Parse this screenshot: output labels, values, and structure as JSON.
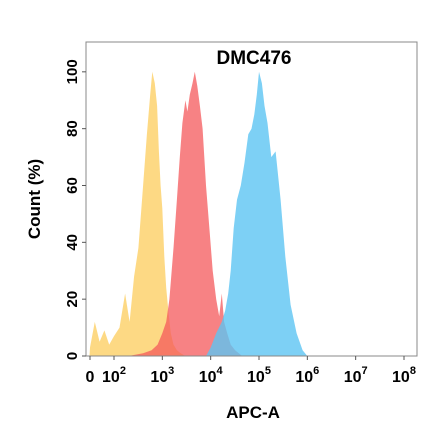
{
  "chart_data": {
    "type": "area",
    "title": "DMC476",
    "xlabel": "APC-A",
    "ylabel": "Count  (%)",
    "xscale": "log",
    "xlim": [
      0,
      100000000
    ],
    "ylim": [
      0,
      100
    ],
    "yticks": [
      0,
      20,
      40,
      60,
      80,
      100
    ],
    "xticks": [
      {
        "value": 0,
        "base": "0",
        "exp": ""
      },
      {
        "value": 100,
        "base": "10",
        "exp": "2"
      },
      {
        "value": 1000,
        "base": "10",
        "exp": "3"
      },
      {
        "value": 10000,
        "base": "10",
        "exp": "4"
      },
      {
        "value": 100000,
        "base": "10",
        "exp": "5"
      },
      {
        "value": 1000000,
        "base": "10",
        "exp": "6"
      },
      {
        "value": 10000000,
        "base": "10",
        "exp": "7"
      },
      {
        "value": 100000000,
        "base": "10",
        "exp": "8"
      }
    ],
    "grid": false,
    "legend": "none",
    "series": [
      {
        "color": "#fdd26e",
        "opacity": 0.85,
        "x": [
          -10,
          0,
          20,
          40,
          60,
          80,
          100,
          130,
          170,
          210,
          260,
          320,
          400,
          480,
          560,
          620,
          700,
          780,
          850,
          920,
          1000,
          1100,
          1200,
          1350,
          1500,
          1700,
          2000,
          2400,
          3000
        ],
        "y": [
          0,
          3,
          12,
          5,
          9,
          4,
          7,
          10,
          22,
          12,
          28,
          38,
          60,
          78,
          92,
          100,
          96,
          88,
          72,
          60,
          52,
          35,
          24,
          15,
          8,
          4,
          2,
          1,
          0
        ]
      },
      {
        "color": "#f4585b",
        "opacity": 0.75,
        "x": [
          200,
          400,
          600,
          800,
          1000,
          1200,
          1400,
          1700,
          2000,
          2300,
          2600,
          3000,
          3300,
          3700,
          4200,
          4700,
          5300,
          6000,
          6800,
          8000,
          9500,
          11000,
          13000,
          15000,
          17000,
          19000,
          22000,
          26000,
          32000,
          45000
        ],
        "y": [
          0,
          1,
          2,
          4,
          8,
          12,
          20,
          38,
          55,
          70,
          82,
          90,
          86,
          92,
          96,
          100,
          95,
          88,
          80,
          60,
          44,
          30,
          20,
          14,
          22,
          12,
          8,
          4,
          2,
          0
        ]
      },
      {
        "color": "#5dc4f3",
        "opacity": 0.8,
        "x": [
          8000,
          10000,
          13000,
          17000,
          20000,
          23000,
          26000,
          30000,
          35000,
          42000,
          50000,
          60000,
          70000,
          80000,
          90000,
          100000,
          115000,
          130000,
          150000,
          180000,
          220000,
          280000,
          350000,
          450000,
          600000,
          800000,
          1000000
        ],
        "y": [
          0,
          3,
          8,
          12,
          16,
          22,
          30,
          45,
          55,
          60,
          68,
          78,
          80,
          85,
          92,
          100,
          96,
          88,
          82,
          70,
          72,
          55,
          35,
          18,
          8,
          2,
          0
        ]
      }
    ]
  }
}
